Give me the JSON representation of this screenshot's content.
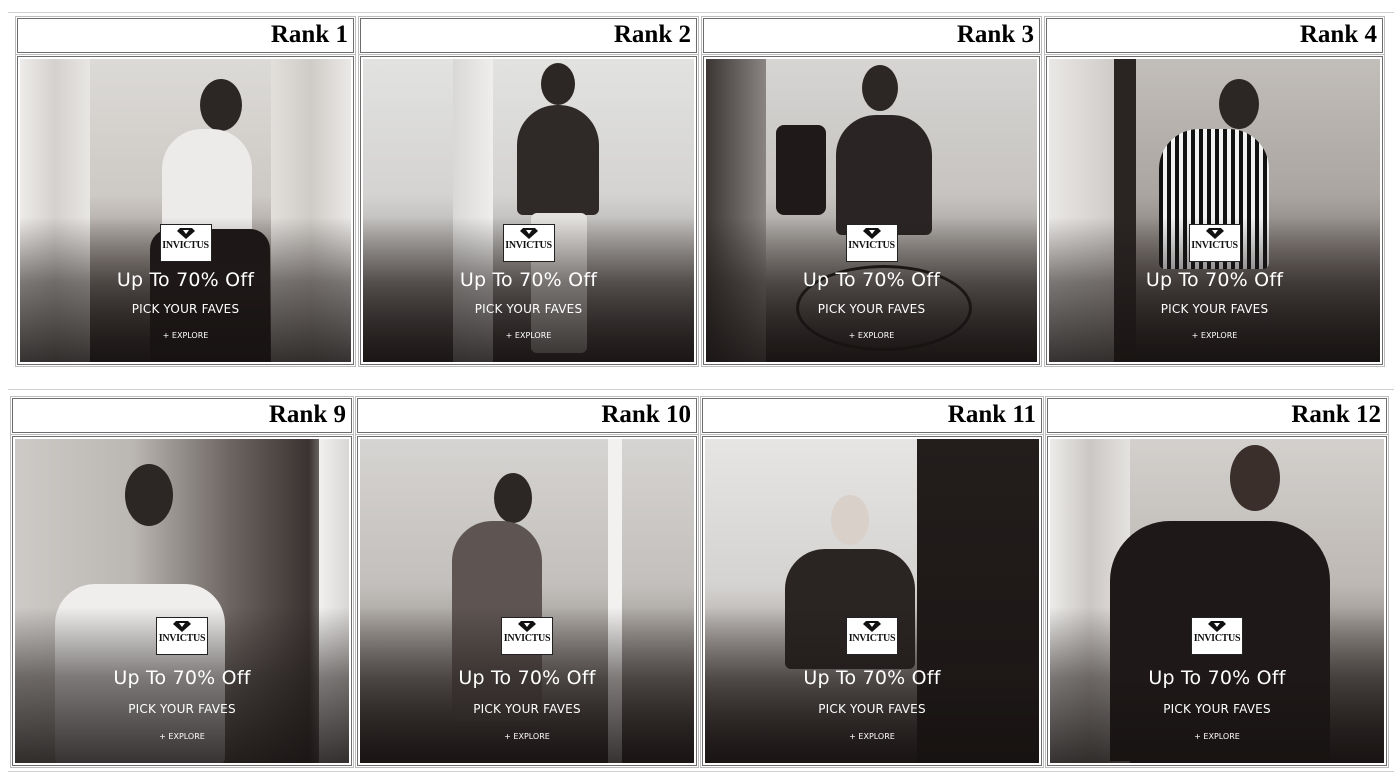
{
  "rows": [
    {
      "cards": [
        {
          "rank": "Rank 1",
          "brand": "INVICTUS",
          "offer": "Up To 70% Off",
          "tagline": "PICK YOUR FAVES",
          "cta": "+ EXPLORE"
        },
        {
          "rank": "Rank 2",
          "brand": "INVICTUS",
          "offer": "Up To 70% Off",
          "tagline": "PICK YOUR FAVES",
          "cta": "+ EXPLORE"
        },
        {
          "rank": "Rank 3",
          "brand": "INVICTUS",
          "offer": "Up To 70% Off",
          "tagline": "PICK YOUR FAVES",
          "cta": "+ EXPLORE"
        },
        {
          "rank": "Rank 4",
          "brand": "INVICTUS",
          "offer": "Up To 70% Off",
          "tagline": "PICK YOUR FAVES",
          "cta": "+ EXPLORE"
        }
      ]
    },
    {
      "cards": [
        {
          "rank": "Rank 9",
          "brand": "INVICTUS",
          "offer": "Up To 70% Off",
          "tagline": "PICK YOUR FAVES",
          "cta": "+ EXPLORE"
        },
        {
          "rank": "Rank 10",
          "brand": "INVICTUS",
          "offer": "Up To 70% Off",
          "tagline": "PICK YOUR FAVES",
          "cta": "+ EXPLORE"
        },
        {
          "rank": "Rank 11",
          "brand": "INVICTUS",
          "offer": "Up To 70% Off",
          "tagline": "PICK YOUR FAVES",
          "cta": "+ EXPLORE"
        },
        {
          "rank": "Rank 12",
          "brand": "INVICTUS",
          "offer": "Up To 70% Off",
          "tagline": "PICK YOUR FAVES",
          "cta": "+ EXPLORE"
        }
      ]
    }
  ],
  "icons": {
    "logo": "diamond-icon"
  },
  "colors": {
    "text_on_banner": "#ffffff",
    "header_text": "#000000",
    "frame_border": "#6d6d6d"
  }
}
